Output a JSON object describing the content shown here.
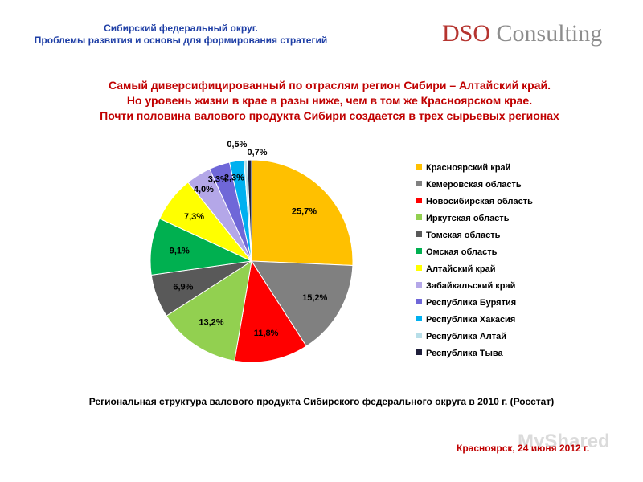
{
  "header": {
    "title_line1": "Сибирский федеральный округ.",
    "title_line2": "Проблемы развития и основы для формирования стратегий",
    "logo_mark": "DSO",
    "logo_text": "Consulting"
  },
  "headline": {
    "line1": "Самый диверсифицированный по отраслям регион Сибири – Алтайский край.",
    "line2": "Но уровень жизни в крае в разы ниже, чем в том же Красноярском крае.",
    "line3": "Почти половина валового продукта Сибири создается в трех сырьевых регионах"
  },
  "chart_data": {
    "type": "pie",
    "title": "",
    "slices": [
      {
        "label": "Красноярский край",
        "value": 25.7,
        "value_label": "25,7%",
        "color": "#ffc000"
      },
      {
        "label": "Кемеровская область",
        "value": 15.2,
        "value_label": "15,2%",
        "color": "#808080"
      },
      {
        "label": "Новосибирская область",
        "value": 11.8,
        "value_label": "11,8%",
        "color": "#ff0000"
      },
      {
        "label": "Иркутская область",
        "value": 13.2,
        "value_label": "13,2%",
        "color": "#92d050"
      },
      {
        "label": "Томская область",
        "value": 6.9,
        "value_label": "6,9%",
        "color": "#595959"
      },
      {
        "label": "Омская область",
        "value": 9.1,
        "value_label": "9,1%",
        "color": "#00b050"
      },
      {
        "label": "Алтайский край",
        "value": 7.3,
        "value_label": "7,3%",
        "color": "#ffff00"
      },
      {
        "label": "Забайкальский край",
        "value": 4.0,
        "value_label": "4,0%",
        "color": "#b4a7e8"
      },
      {
        "label": "Республика Бурятия",
        "value": 3.3,
        "value_label": "3,3%",
        "color": "#6f67d8"
      },
      {
        "label": "Республика Хакасия",
        "value": 2.3,
        "value_label": "2,3%",
        "color": "#00b0f0"
      },
      {
        "label": "Республика Алтай",
        "value": 0.5,
        "value_label": "0,5%",
        "color": "#b7dee8"
      },
      {
        "label": "Республика Тыва",
        "value": 0.7,
        "value_label": "0,7%",
        "color": "#1f1f3a"
      }
    ],
    "start_angle": "12 o'clock",
    "direction": "clockwise",
    "legend_position": "right"
  },
  "caption": "Региональная структура валового продукта Сибирского федерального округа в 2010 г. (Росстат)",
  "footer": "Красноярск, 24 июня 2012 г.",
  "watermark": "MyShared"
}
